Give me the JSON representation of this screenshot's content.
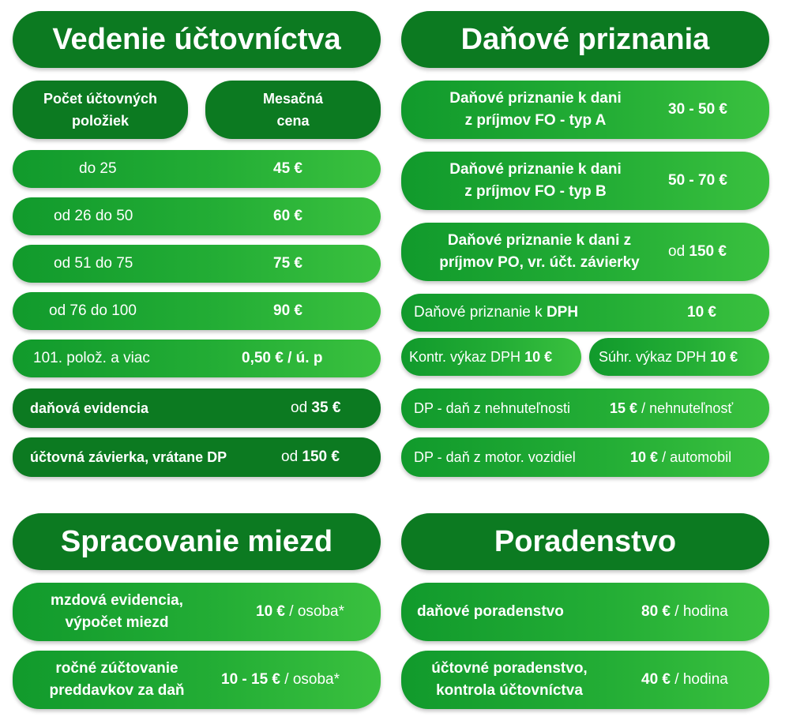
{
  "accounting": {
    "title": "Vedenie účtovníctva",
    "col_items_line1": "Počet účtovných",
    "col_items_line2": "položiek",
    "col_price_line1": "Mesačná",
    "col_price_line2": "cena",
    "rows": [
      {
        "label": "do 25",
        "price": "45 €"
      },
      {
        "label": "od 26 do 50",
        "price": "60 €"
      },
      {
        "label": "od 51 do 75",
        "price": "75 €"
      },
      {
        "label": "od 76 do 100",
        "price": "90 €"
      },
      {
        "label": "101. polož. a viac",
        "price": "0,50 € / ú. p"
      }
    ],
    "tax_records": {
      "label": "daňová evidencia",
      "prefix": "od",
      "price": "35 €"
    },
    "closing": {
      "label": "účtovná závierka, vrátane DP",
      "prefix": "od",
      "price": "150 €"
    }
  },
  "tax": {
    "title": "Daňové priznania",
    "fo_a": {
      "line1": "Daňové priznanie k dani",
      "line2": "z príjmov FO - typ A",
      "price": "30 - 50 €"
    },
    "fo_b": {
      "line1": "Daňové priznanie k dani",
      "line2": "z príjmov FO - typ B",
      "price": "50 - 70 €"
    },
    "po": {
      "line1": "Daňové priznanie k dani z",
      "line2": "príjmov PO, vr. účt. závierky",
      "prefix": "od",
      "price": "150 €"
    },
    "vat": {
      "label": "Daňové priznanie k",
      "label_bold": "DPH",
      "price": "10 €"
    },
    "control": {
      "label": "Kontr. výkaz DPH",
      "price": "10 €"
    },
    "summary": {
      "label": "Súhr. výkaz DPH",
      "price": "10 €"
    },
    "property": {
      "label": "DP - daň z nehnuteľnosti",
      "price": "15 €",
      "unit": "/ nehnuteľnosť"
    },
    "vehicle": {
      "label": "DP - daň z motor. vozidiel",
      "price": "10 €",
      "unit": "/ automobil"
    }
  },
  "payroll": {
    "title": "Spracovanie miezd",
    "wages": {
      "line1": "mzdová evidencia,",
      "line2": "výpočet miezd",
      "price": "10 €",
      "unit": "/ osoba*"
    },
    "annual": {
      "line1": "ročné zúčtovanie",
      "line2": "preddavkov za daň",
      "price": "10 - 15 €",
      "unit": "/ osoba*"
    }
  },
  "consulting": {
    "title": "Poradenstvo",
    "tax_advice": {
      "label": "daňové poradenstvo",
      "price": "80 €",
      "unit": "/ hodina"
    },
    "acc_advice": {
      "line1": "účtovné poradenstvo,",
      "line2": "kontrola účtovníctva",
      "price": "40 €",
      "unit": "/ hodina"
    }
  }
}
